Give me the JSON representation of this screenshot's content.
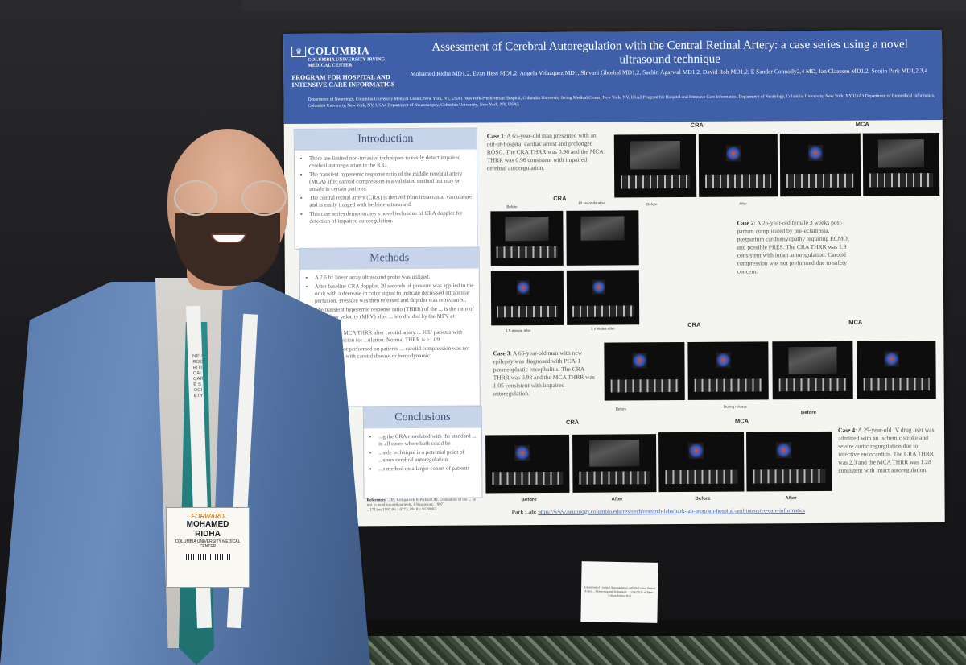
{
  "poster": {
    "header": {
      "logo": "COLUMBIA",
      "logo_sub": "COLUMBIA UNIVERSITY IRVING MEDICAL CENTER",
      "program": "PROGRAM FOR HOSPITAL AND INTENSIVE CARE INFORMATICS",
      "title": "Assessment of Cerebral Autoregulation with the Central Retinal Artery: a case series using a novel ultrasound technique",
      "authors": "Mohamed Ridha MD1,2, Evan Hess MD1,2, Angela Velazquez MD1, Shivani Ghoshal MD1,2, Sachin Agarwal MD1,2, David Roh MD1,2, E Sander Connolly2,4 MD, Jan Claassen MD1,2, Soojin Park MD1,2,3,4",
      "affiliations": "Department of Neurology, Columbia University Medical Center, New York, NY, USA1 NewYork-Presbyterian Hospital, Columbia University Irving Medical Center, New York, NY, USA2 Program for Hospital and Intensive Care Informatics, Department of Neurology, Columbia University, New York, NY USA3 Department of Biomedical Informatics, Columbia University, New York, NY, USA4 Department of Neurosurgery, Columbia University, New York, NY, USA5"
    },
    "introduction": {
      "heading": "Introduction",
      "bullets": [
        "There are limited non-invasive techniques to easily detect impaired cerebral autoregulation in the ICU.",
        "The transient hyperemic response ratio of the middle cerebral artery (MCA) after carotid compression is a validated method but may be unsafe in certain patients.",
        "The central retinal artery (CRA) is derived from intracranial vasculature and is easily imaged with bedside ultrasound.",
        "This case series demonstrates a novel technique of CRA doppler for detection of impaired autoregulation."
      ]
    },
    "methods": {
      "heading": "Methods",
      "bullets": [
        "A 7.5 hz linear array ultrasound probe was utilized.",
        "After baseline CRA doppler, 20 seconds of pressure was applied to the orbit with a decrease in color signal to indicate decreased intraocular perfusion. Pressure was then released and doppler was remeasured.",
        "The transient hyperemic response ratio (THRR) of the ... is the ratio of mean flow velocity (MFV) after ... ion divided by the MFV at baseline.",
        "...mpared to MCA THRR after carotid artery ... ICU patients with clinical suspicion for ...ulation. Normal THRR is >1.09.",
        "...sion was not performed on patients ... carotid compression was not performed ... with carotid disease or hemodynamic"
      ]
    },
    "conclusions": {
      "heading": "Conclusions",
      "bullets": [
        "...g the CRA correlated with the standard ... in all cases where both could be",
        "...side technique is a potential point of ...ssess cerebral autoregulation.",
        "...s method on a larger cohort of patients"
      ],
      "references_label": "References:",
      "references": "...M, Kirkpatrick P, Pickard JD. Evaluation of the ... se test in head-injured patients. J Neurosurg. 1997 ...171/jns.1997.86.3.0773. PMID: 9120893."
    },
    "case1": {
      "label": "Case 1",
      "text": "A 65-year-old man presented with an out-of-hospital cardiac arrest and prolonged ROSC. The CRA THRR was 0.96 and the MCA THRR was 0.96 consistent with impaired cerebral autoregulation.",
      "cra": "CRA",
      "mca": "MCA",
      "before": "Before",
      "after": "After"
    },
    "case1_cra_grid": {
      "title": "CRA",
      "labels": [
        "Before",
        "10 seconds after",
        "1.5 minute after",
        "2 minutes after"
      ]
    },
    "case2": {
      "label": "Case 2",
      "text": "A 26-year-old female 3 weeks post-partum complicated by pre-eclampsia, postpartum cardiomyopathy requiring ECMO, and possible PRES. The CRA THRR was 1.9 consistent with intact autoregulation. Carotid compression was not preformed due to safety concern."
    },
    "case3": {
      "label": "Case 3",
      "text": "A 66-year-old man with new epilepsy was diagnosed with PCA-1 paraneoplastic encephalitis. The CRA THRR was 0.98 and the MCA THRR was 1.05 consistent with impaired autoregulation.",
      "cra": "CRA",
      "mca": "MCA",
      "before": "Before",
      "during": "During release",
      "before2": "Before"
    },
    "case4": {
      "label": "Case 4",
      "text": "A 29-year-old IV drug user was admitted with an ischemic stroke and severe aortic regurgitation due to infective endocarditis. The CRA THRR was 2.3 and the MCA THRR was 1.28 consistent with intact autoregulation.",
      "cra": "CRA",
      "mca": "MCA",
      "before": "Before",
      "after": "After",
      "before2": "Before",
      "after2": "After"
    },
    "park_lab_label": "Park Lab:",
    "park_lab_url": "https://www.neurology.columbia.edu/research/research-labs/park-lab-program-hospital-and-intensive-care-informatics"
  },
  "table_card": "Assessment of Cerebral Autoregulation with the Central Retinal Artery ... Monitoring and Technology ... 1/19/2023 - 4:30pm - 5:30pm Exhibit Hall",
  "badge": {
    "event": "FORWARD",
    "first_name": "MOHAMED",
    "last_name": "RIDHA",
    "org": "COLUMBIA UNIVERSITY MEDICAL CENTER"
  },
  "lanyard_text": "NEUROCRITICAL CARE SOCIETY"
}
